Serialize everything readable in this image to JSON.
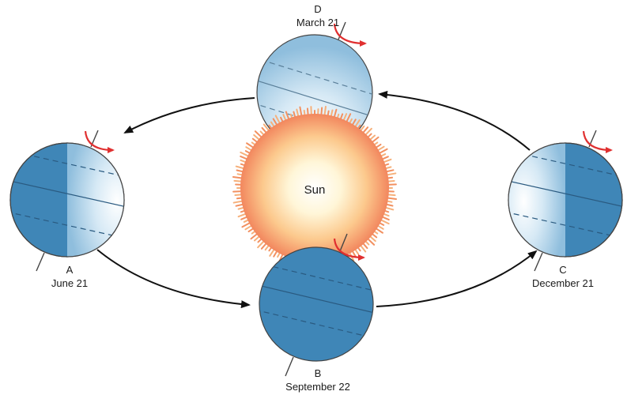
{
  "sun": {
    "label": "Sun"
  },
  "positions": [
    {
      "letter": "A",
      "date": "June 21"
    },
    {
      "letter": "B",
      "date": "September 22"
    },
    {
      "letter": "C",
      "date": "December 21"
    },
    {
      "letter": "D",
      "date": "March 21"
    }
  ],
  "colors": {
    "earth_dark": "#3f86b7",
    "earth_light": "#e8f3fa",
    "sun_core": "#fffbe8",
    "sun_mid": "#fcd49a",
    "sun_edge": "#f0845a",
    "rotation_arrow": "#e03030",
    "orbit": "#111111"
  }
}
